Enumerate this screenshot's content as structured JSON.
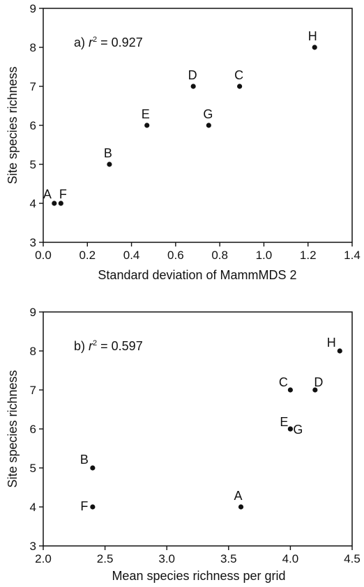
{
  "chart_data": [
    {
      "type": "scatter",
      "panel": "a)",
      "r2_label": "r",
      "r2_value": "= 0.927",
      "xlabel": "Standard deviation of MammMDS 2",
      "ylabel": "Site species richness",
      "xlim": [
        0.0,
        1.4
      ],
      "ylim": [
        3,
        9
      ],
      "xticks": [
        "0.0",
        "0.2",
        "0.4",
        "0.6",
        "0.8",
        "1.0",
        "1.2",
        "1.4"
      ],
      "yticks": [
        "3",
        "4",
        "5",
        "6",
        "7",
        "8",
        "9"
      ],
      "points": [
        {
          "label": "A",
          "x": 0.05,
          "y": 4
        },
        {
          "label": "F",
          "x": 0.08,
          "y": 4
        },
        {
          "label": "B",
          "x": 0.3,
          "y": 5
        },
        {
          "label": "E",
          "x": 0.47,
          "y": 6
        },
        {
          "label": "D",
          "x": 0.68,
          "y": 7
        },
        {
          "label": "G",
          "x": 0.75,
          "y": 6
        },
        {
          "label": "C",
          "x": 0.89,
          "y": 7
        },
        {
          "label": "H",
          "x": 1.23,
          "y": 8
        }
      ],
      "grid": false,
      "legend": "none"
    },
    {
      "type": "scatter",
      "panel": "b)",
      "r2_label": "r",
      "r2_value": "= 0.597",
      "xlabel": "Mean species richness per grid",
      "ylabel": "Site species richness",
      "xlim": [
        2.0,
        4.5
      ],
      "ylim": [
        3,
        9
      ],
      "xticks": [
        "2.0",
        "2.5",
        "3.0",
        "3.5",
        "4.0",
        "4.5"
      ],
      "yticks": [
        "3",
        "4",
        "5",
        "6",
        "7",
        "8",
        "9"
      ],
      "points": [
        {
          "label": "B",
          "x": 2.4,
          "y": 5
        },
        {
          "label": "F",
          "x": 2.4,
          "y": 4
        },
        {
          "label": "A",
          "x": 3.6,
          "y": 4
        },
        {
          "label": "C",
          "x": 4.0,
          "y": 7
        },
        {
          "label": "E",
          "x": 4.0,
          "y": 6
        },
        {
          "label": "G",
          "x": 4.0,
          "y": 6
        },
        {
          "label": "D",
          "x": 4.2,
          "y": 7
        },
        {
          "label": "H",
          "x": 4.4,
          "y": 8
        }
      ],
      "grid": false,
      "legend": "none"
    }
  ]
}
